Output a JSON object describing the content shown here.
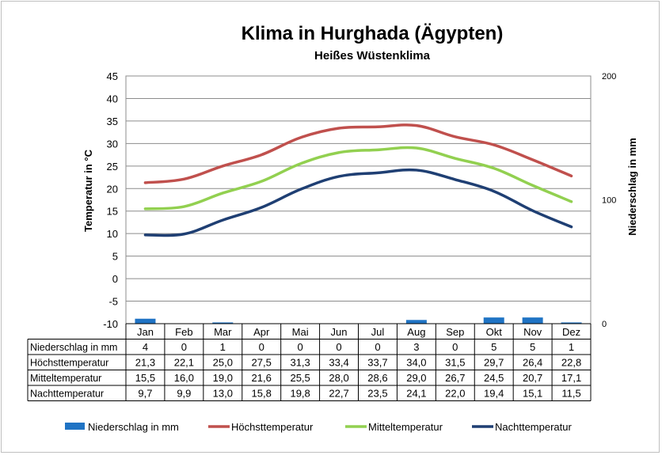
{
  "chart_data": {
    "type": "line",
    "title": "Klima in Hurghada (Ägypten)",
    "subtitle": "Heißes Wüstenklima",
    "ylabel": "Temperatur in °C",
    "y2label": "Niederschlag in mm",
    "ylim": [
      -10,
      45
    ],
    "y2lim": [
      0,
      200
    ],
    "yticks": [
      "45",
      "40",
      "35",
      "30",
      "25",
      "20",
      "15",
      "10",
      "5",
      "0",
      "-5",
      "-10"
    ],
    "y2ticks": [
      "200",
      "100",
      "0"
    ],
    "categories": [
      "Jan",
      "Feb",
      "Mar",
      "Apr",
      "Mai",
      "Jun",
      "Jul",
      "Aug",
      "Sep",
      "Okt",
      "Nov",
      "Dez"
    ],
    "grid": true,
    "legend_position": "bottom",
    "series": [
      {
        "name": "Niederschlag in mm",
        "type": "bar",
        "axis": "right",
        "color": "#1f73c4",
        "values": [
          4,
          0,
          1,
          0,
          0,
          0,
          0,
          3,
          0,
          5,
          5,
          1
        ],
        "labels": [
          "4",
          "0",
          "1",
          "0",
          "0",
          "0",
          "0",
          "3",
          "0",
          "5",
          "5",
          "1"
        ]
      },
      {
        "name": "Höchsttemperatur",
        "type": "line",
        "axis": "left",
        "color": "#c0504d",
        "values": [
          21.3,
          22.1,
          25.0,
          27.5,
          31.3,
          33.4,
          33.7,
          34.0,
          31.5,
          29.7,
          26.4,
          22.8
        ],
        "labels": [
          "21,3",
          "22,1",
          "25,0",
          "27,5",
          "31,3",
          "33,4",
          "33,7",
          "34,0",
          "31,5",
          "29,7",
          "26,4",
          "22,8"
        ]
      },
      {
        "name": "Mitteltemperatur",
        "type": "line",
        "axis": "left",
        "color": "#92d050",
        "values": [
          15.5,
          16.0,
          19.0,
          21.6,
          25.5,
          28.0,
          28.6,
          29.0,
          26.7,
          24.5,
          20.7,
          17.1
        ],
        "labels": [
          "15,5",
          "16,0",
          "19,0",
          "21,6",
          "25,5",
          "28,0",
          "28,6",
          "29,0",
          "26,7",
          "24,5",
          "20,7",
          "17,1"
        ]
      },
      {
        "name": "Nachttemperatur",
        "type": "line",
        "axis": "left",
        "color": "#1f3f73",
        "values": [
          9.7,
          9.9,
          13.0,
          15.8,
          19.8,
          22.7,
          23.5,
          24.1,
          22.0,
          19.4,
          15.1,
          11.5
        ],
        "labels": [
          "9,7",
          "9,9",
          "13,0",
          "15,8",
          "19,8",
          "22,7",
          "23,5",
          "24,1",
          "22,0",
          "19,4",
          "15,1",
          "11,5"
        ]
      }
    ]
  }
}
